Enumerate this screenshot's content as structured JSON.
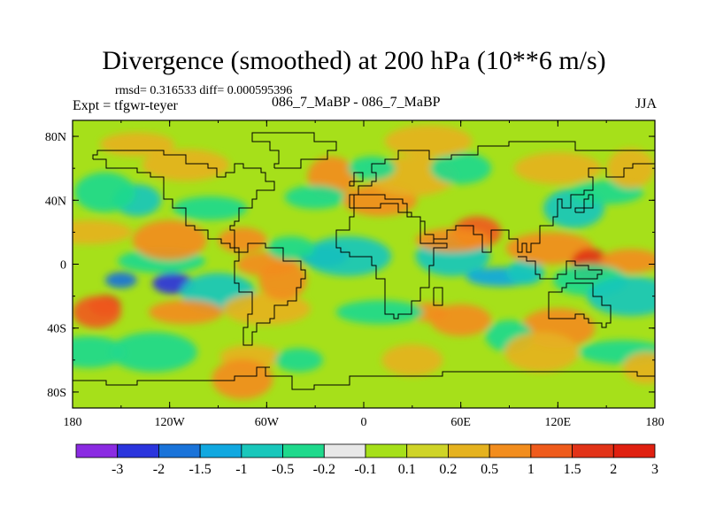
{
  "header": {
    "title": "Divergence (smoothed) at 200 hPa (10**6 m/s)",
    "stats": "rmsd= 0.316533 diff= 0.000595396",
    "left_string": "Expt = tfgwr-teyer",
    "center_string": "086_7_MaBP - 086_7_MaBP",
    "right_string": "JJA"
  },
  "chart_data": {
    "type": "heatmap",
    "title": "Divergence (smoothed) at 200 hPa (10**6 m/s)",
    "xaxis": {
      "range": [
        -180,
        180
      ],
      "ticks": [
        -180,
        -120,
        -60,
        0,
        60,
        120,
        180
      ],
      "tick_labels": [
        "180",
        "120W",
        "60W",
        "0",
        "60E",
        "120E",
        "180"
      ]
    },
    "yaxis": {
      "range": [
        -90,
        90
      ],
      "ticks": [
        80,
        40,
        0,
        -40,
        -80
      ],
      "tick_labels": [
        "80N",
        "40N",
        "0",
        "40S",
        "80S"
      ]
    },
    "colorbar": {
      "levels": [
        "-3",
        "-2",
        "-1.5",
        "-1",
        "-0.5",
        "-0.2",
        "-0.1",
        "0.1",
        "0.2",
        "0.5",
        "1",
        "1.5",
        "2",
        "3"
      ],
      "colors": [
        "#8b2be2",
        "#2b35dd",
        "#1a73d9",
        "#11a8e0",
        "#19c7bb",
        "#1fd98c",
        "#e8e8e8",
        "#a6e01a",
        "#cfd428",
        "#e5b21f",
        "#f28d1e",
        "#ef5b1c",
        "#e23318",
        "#e02010"
      ]
    },
    "regions": [
      {
        "lon": -150,
        "lat": -10,
        "value": -1.6
      },
      {
        "lon": -118,
        "lat": -12,
        "value": -2.2
      },
      {
        "lon": -90,
        "lat": -18,
        "value": -0.7
      },
      {
        "lon": -125,
        "lat": 2,
        "value": -0.3
      },
      {
        "lon": -160,
        "lat": -26,
        "value": 1.6
      },
      {
        "lon": -165,
        "lat": -30,
        "value": 1.2
      },
      {
        "lon": -110,
        "lat": -30,
        "value": 0.6
      },
      {
        "lon": -60,
        "lat": -28,
        "value": 0.4
      },
      {
        "lon": -50,
        "lat": -10,
        "value": 0.8
      },
      {
        "lon": -60,
        "lat": 0,
        "value": 0.5
      },
      {
        "lon": -25,
        "lat": 5,
        "value": -1.8
      },
      {
        "lon": -10,
        "lat": 5,
        "value": -0.6
      },
      {
        "lon": -45,
        "lat": 10,
        "value": -0.3
      },
      {
        "lon": -75,
        "lat": 15,
        "value": 0.9
      },
      {
        "lon": -120,
        "lat": 15,
        "value": 0.8
      },
      {
        "lon": -170,
        "lat": 20,
        "value": 0.4
      },
      {
        "lon": -140,
        "lat": 40,
        "value": -0.6
      },
      {
        "lon": -160,
        "lat": 45,
        "value": -0.4
      },
      {
        "lon": -95,
        "lat": 35,
        "value": -0.3
      },
      {
        "lon": -110,
        "lat": 62,
        "value": 0.35
      },
      {
        "lon": -20,
        "lat": 55,
        "value": 0.5
      },
      {
        "lon": -30,
        "lat": 42,
        "value": -0.4
      },
      {
        "lon": 10,
        "lat": 40,
        "value": 0.8
      },
      {
        "lon": 30,
        "lat": 55,
        "value": 0.3
      },
      {
        "lon": 5,
        "lat": 60,
        "value": -0.3
      },
      {
        "lon": 60,
        "lat": 60,
        "value": -0.35
      },
      {
        "lon": 55,
        "lat": 5,
        "value": -0.6
      },
      {
        "lon": 85,
        "lat": -8,
        "value": -1.3
      },
      {
        "lon": 100,
        "lat": -5,
        "value": -0.9
      },
      {
        "lon": 70,
        "lat": 20,
        "value": 1.0
      },
      {
        "lon": 55,
        "lat": 15,
        "value": 0.6
      },
      {
        "lon": 115,
        "lat": 10,
        "value": 0.7
      },
      {
        "lon": 140,
        "lat": 0,
        "value": 1.5
      },
      {
        "lon": 165,
        "lat": 2,
        "value": 0.8
      },
      {
        "lon": 140,
        "lat": -10,
        "value": -0.5
      },
      {
        "lon": 165,
        "lat": -20,
        "value": -0.6
      },
      {
        "lon": 40,
        "lat": -30,
        "value": 0.9
      },
      {
        "lon": 60,
        "lat": -35,
        "value": 0.6
      },
      {
        "lon": 120,
        "lat": -40,
        "value": 0.5
      },
      {
        "lon": 10,
        "lat": -30,
        "value": -0.5
      },
      {
        "lon": 90,
        "lat": -45,
        "value": -0.5
      },
      {
        "lon": 130,
        "lat": 35,
        "value": -0.7
      },
      {
        "lon": 150,
        "lat": 45,
        "value": -0.4
      },
      {
        "lon": 120,
        "lat": 60,
        "value": 0.3
      },
      {
        "lon": 165,
        "lat": 60,
        "value": 0.35
      },
      {
        "lon": -70,
        "lat": -58,
        "value": 0.4
      },
      {
        "lon": -170,
        "lat": -55,
        "value": -0.4
      },
      {
        "lon": -130,
        "lat": -55,
        "value": -0.4
      },
      {
        "lon": -40,
        "lat": -60,
        "value": -0.4
      },
      {
        "lon": 30,
        "lat": -60,
        "value": 0.3
      },
      {
        "lon": 110,
        "lat": -55,
        "value": 0.35
      },
      {
        "lon": 160,
        "lat": -55,
        "value": -0.4
      },
      {
        "lon": 175,
        "lat": -65,
        "value": 0.3
      },
      {
        "lon": -75,
        "lat": -72,
        "value": 0.5
      },
      {
        "lon": -140,
        "lat": 75,
        "value": 0.35
      },
      {
        "lon": 40,
        "lat": 77,
        "value": 0.3
      }
    ]
  }
}
